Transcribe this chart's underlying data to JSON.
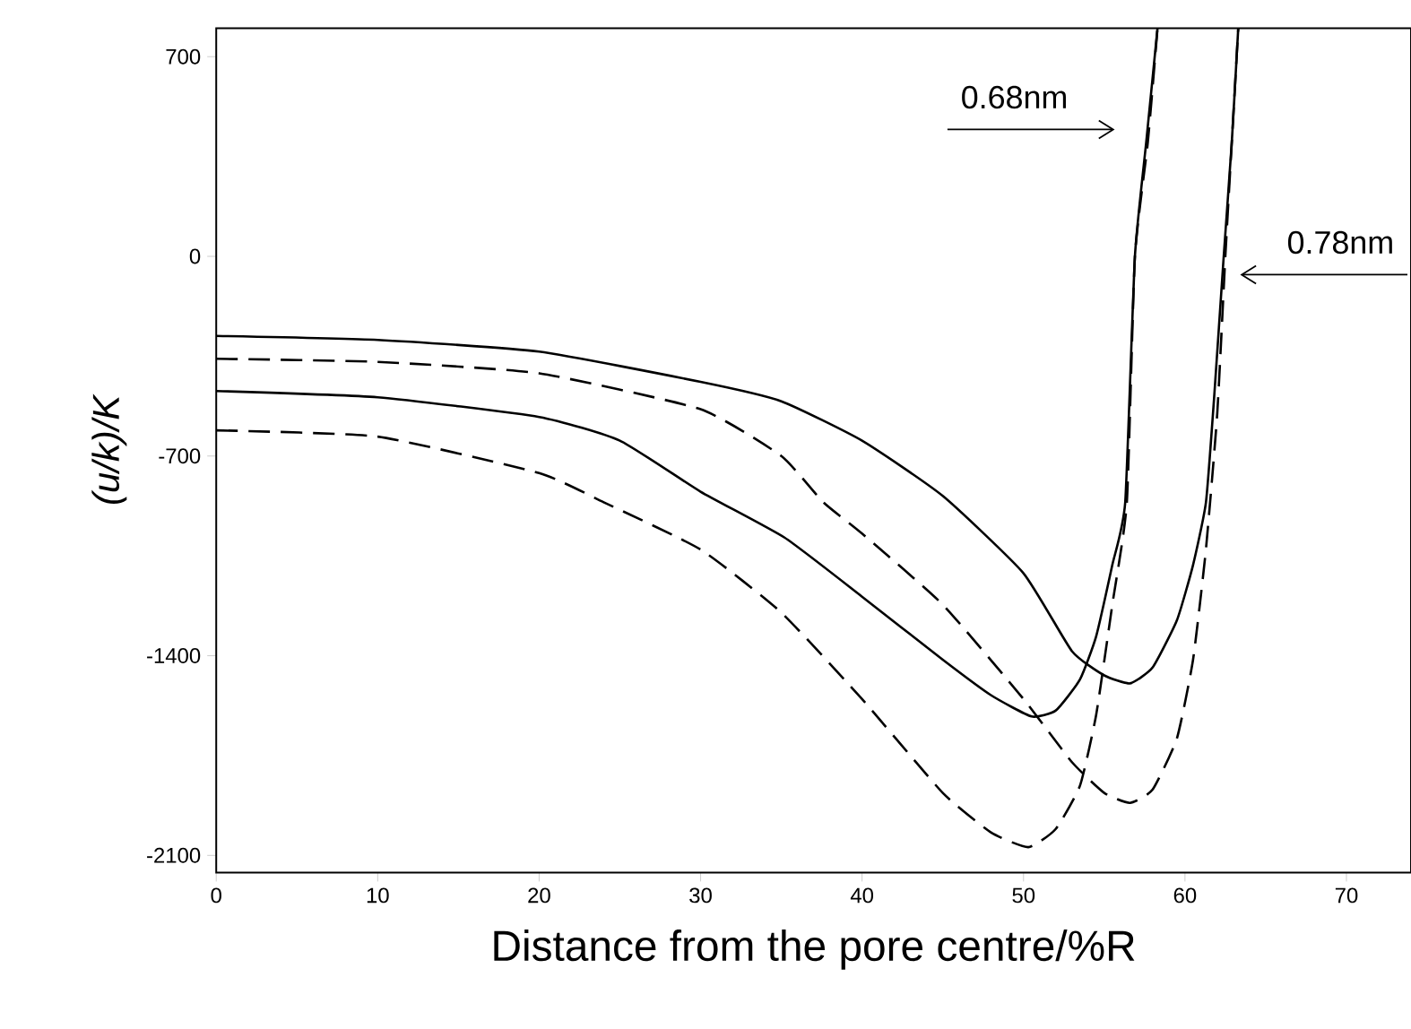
{
  "chart_data": {
    "type": "line",
    "xlabel": "Distance from the pore centre/%R",
    "ylabel": "(u/k)/K",
    "xlim": [
      0,
      74
    ],
    "ylim": [
      -2160,
      800
    ],
    "xticks": [
      0,
      10,
      20,
      30,
      40,
      50,
      60,
      70
    ],
    "yticks": [
      -2100,
      -1400,
      -700,
      0,
      700
    ],
    "series": [
      {
        "color": "#000000",
        "line_style": "solid",
        "x": [
          0,
          10,
          20,
          30,
          35,
          40,
          45,
          50,
          53,
          55,
          56.6,
          58,
          59.5,
          60.5,
          61.3,
          61.8,
          62.4,
          62.9,
          63.3
        ],
        "values": [
          -279,
          -293,
          -334,
          -440,
          -508,
          -646,
          -840,
          -1111,
          -1384,
          -1469,
          -1497,
          -1441,
          -1276,
          -1082,
          -862,
          -500,
          0,
          400,
          800
        ]
      },
      {
        "color": "#000000",
        "line_style": "dashed",
        "x": [
          0,
          10,
          20,
          30,
          35,
          37.6,
          40,
          45,
          50,
          53,
          55,
          56.6,
          58,
          59.5,
          60.5,
          61.3,
          62,
          62.5,
          62.9,
          63.3
        ],
        "values": [
          -359,
          -370,
          -410,
          -536,
          -700,
          -862,
          -972,
          -1221,
          -1552,
          -1773,
          -1881,
          -1916,
          -1869,
          -1690,
          -1414,
          -1026,
          -550,
          0,
          400,
          800
        ]
      },
      {
        "color": "#000000",
        "line_style": "solid",
        "x": [
          0,
          10,
          20,
          25,
          30,
          35.2,
          40,
          45,
          48,
          50.5,
          52,
          53.5,
          54.5,
          55.5,
          56.3,
          56.9,
          57.6,
          58.3
        ],
        "values": [
          -472,
          -494,
          -563,
          -646,
          -825,
          -986,
          -1193,
          -1414,
          -1539,
          -1613,
          -1592,
          -1483,
          -1332,
          -1082,
          -862,
          0,
          400,
          800
        ]
      },
      {
        "color": "#000000",
        "line_style": "dashed",
        "x": [
          0,
          10,
          20,
          24,
          30,
          35,
          40,
          45,
          48,
          50.3,
          52,
          53.5,
          54.5,
          55.5,
          56.4,
          56.9,
          57.7,
          58.3
        ],
        "values": [
          -610,
          -632,
          -760,
          -862,
          -1028,
          -1249,
          -1552,
          -1881,
          -2020,
          -2071,
          -2007,
          -1855,
          -1607,
          -1221,
          -862,
          0,
          400,
          800
        ]
      }
    ],
    "annotations": [
      "0.68nm",
      "0.78nm"
    ]
  }
}
